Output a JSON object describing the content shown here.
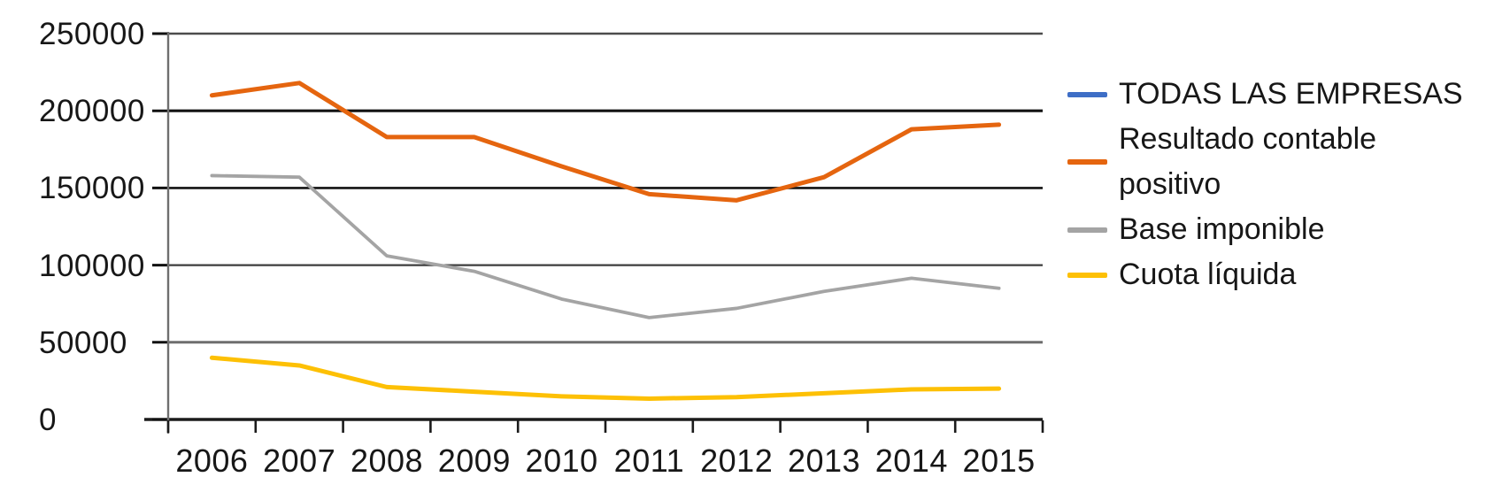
{
  "chart_data": {
    "type": "line",
    "title": "",
    "xlabel": "",
    "ylabel": "",
    "x_labels": [
      "2006",
      "2007",
      "2008",
      "2009",
      "2010",
      "2011",
      "2012",
      "2013",
      "2014",
      "2015"
    ],
    "ytick_labels": [
      "0",
      "50000",
      "100000",
      "150000",
      "200000",
      "250000"
    ],
    "yticks": [
      0,
      50000,
      100000,
      150000,
      200000,
      250000
    ],
    "ylim": [
      0,
      250000
    ],
    "grid": true,
    "legend_position": "right",
    "series": [
      {
        "name": "TODAS LAS EMPRESAS",
        "legend_lines": [
          "TODAS LAS EMPRESAS"
        ],
        "color": "#3e6ec6",
        "visible_in_plot": false,
        "values": []
      },
      {
        "name": "Resultado contable positivo",
        "legend_lines": [
          "Resultado contable",
          "positivo"
        ],
        "color": "#e5650f",
        "visible_in_plot": true,
        "values": [
          210000,
          218000,
          183000,
          183000,
          164000,
          146000,
          142000,
          157000,
          188000,
          191000
        ]
      },
      {
        "name": "Base imponible",
        "legend_lines": [
          "Base imponible"
        ],
        "color": "#a4a4a4",
        "visible_in_plot": true,
        "values": [
          158000,
          157000,
          106000,
          96000,
          78000,
          66000,
          72000,
          83000,
          91500,
          85000
        ]
      },
      {
        "name": "Cuota líquida",
        "legend_lines": [
          "Cuota líquida"
        ],
        "color": "#fdc005",
        "visible_in_plot": true,
        "values": [
          40000,
          35000,
          21000,
          18000,
          15000,
          13500,
          14500,
          17000,
          19500,
          20000
        ]
      }
    ]
  },
  "colors": {
    "background": "#ffffff",
    "text": "#171717",
    "axis_line": "#6f6f6f",
    "major_gridline": "#121212",
    "minor_gridline": "#6e6e6e"
  }
}
